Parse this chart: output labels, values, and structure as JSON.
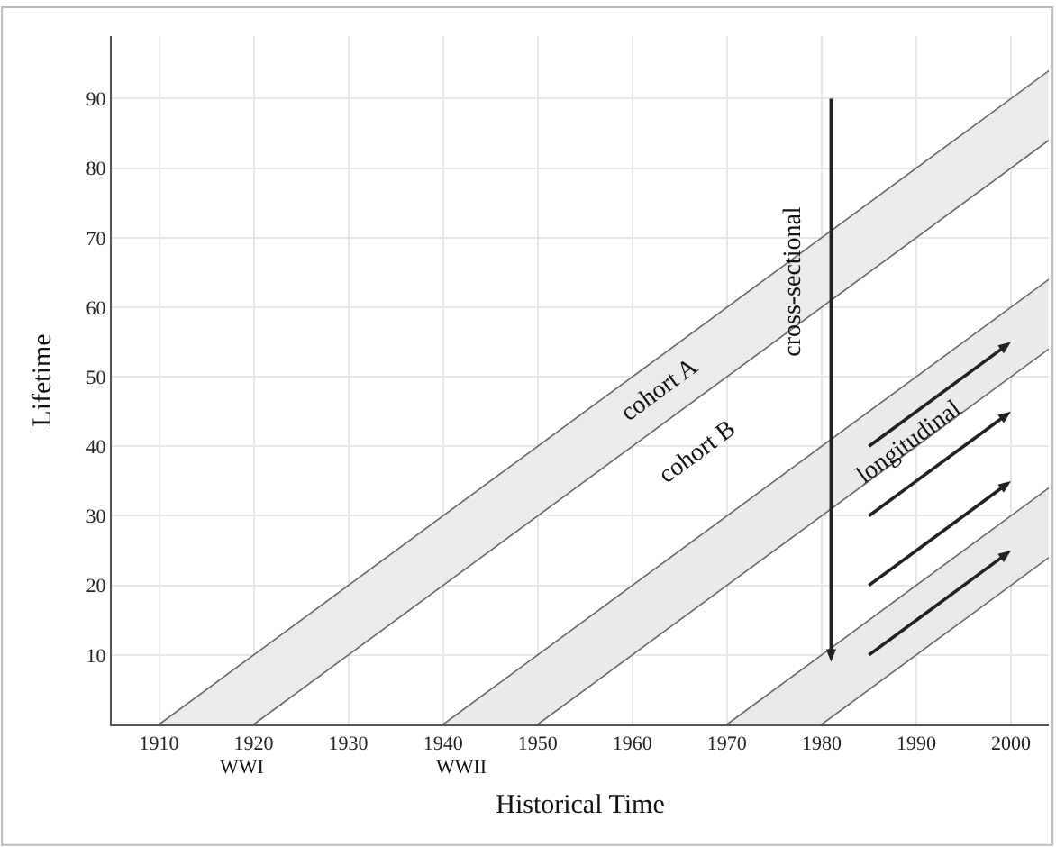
{
  "chart_data": {
    "type": "line",
    "xlabel": "Historical Time",
    "ylabel": "Lifetime",
    "xlim": [
      1905,
      2004
    ],
    "ylim": [
      0,
      99
    ],
    "xticks": [
      1910,
      1920,
      1930,
      1940,
      1950,
      1960,
      1970,
      1980,
      1990,
      2000
    ],
    "yticks": [
      10,
      20,
      30,
      40,
      50,
      60,
      70,
      80,
      90
    ],
    "grid": true,
    "series": [
      {
        "color": "#666666",
        "x": [
          1920,
          2004
        ],
        "values": [
          0,
          84
        ]
      },
      {
        "type": "area",
        "color": "#e9ece9",
        "x": [
          1910,
          1920,
          2004
        ],
        "values": [
          0,
          10,
          94
        ]
      },
      {
        "color": "#666666",
        "x": [
          1950,
          2004
        ],
        "values": [
          0,
          54
        ]
      },
      {
        "type": "area",
        "color": "#e8ebe8",
        "x": [
          1940,
          1950,
          2004
        ],
        "values": [
          0,
          10,
          64
        ]
      },
      {
        "color": "#666666",
        "x": [
          1980,
          2004
        ],
        "values": [
          0,
          24
        ]
      },
      {
        "type": "area",
        "color": "#e7eae7",
        "x": [
          1970,
          1980,
          2004
        ],
        "values": [
          0,
          10,
          34
        ]
      }
    ],
    "annotations": [
      "cohort A",
      "cohort B",
      "cross-sectional",
      "longitudinal",
      "WWI",
      "WWII"
    ]
  }
}
